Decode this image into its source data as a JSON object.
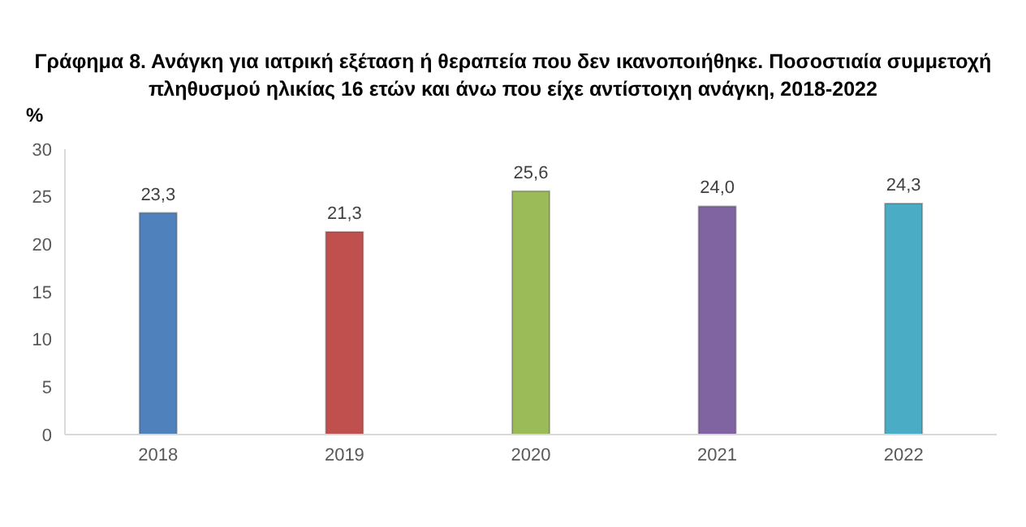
{
  "chart_data": {
    "type": "bar",
    "title": "Γράφημα 8. Ανάγκη για ιατρική εξέταση ή θεραπεία που δεν ικανοποιήθηκε. Ποσοστιαία συμμετοχή πληθυσμού ηλικίας 16 ετών και άνω που είχε αντίστοιχη ανάγκη, 2018-2022",
    "ylabel": "%",
    "categories": [
      "2018",
      "2019",
      "2020",
      "2021",
      "2022"
    ],
    "values": [
      23.3,
      21.3,
      25.6,
      24.0,
      24.3
    ],
    "value_labels": [
      "23,3",
      "21,3",
      "25,6",
      "24,0",
      "24,3"
    ],
    "colors": [
      "#4f81bd",
      "#c0504d",
      "#9bbb59",
      "#8064a2",
      "#4bacc6"
    ],
    "ylim": [
      0,
      30
    ],
    "yticks": [
      0,
      5,
      10,
      15,
      20,
      25,
      30
    ],
    "grid": false,
    "legend": false
  }
}
